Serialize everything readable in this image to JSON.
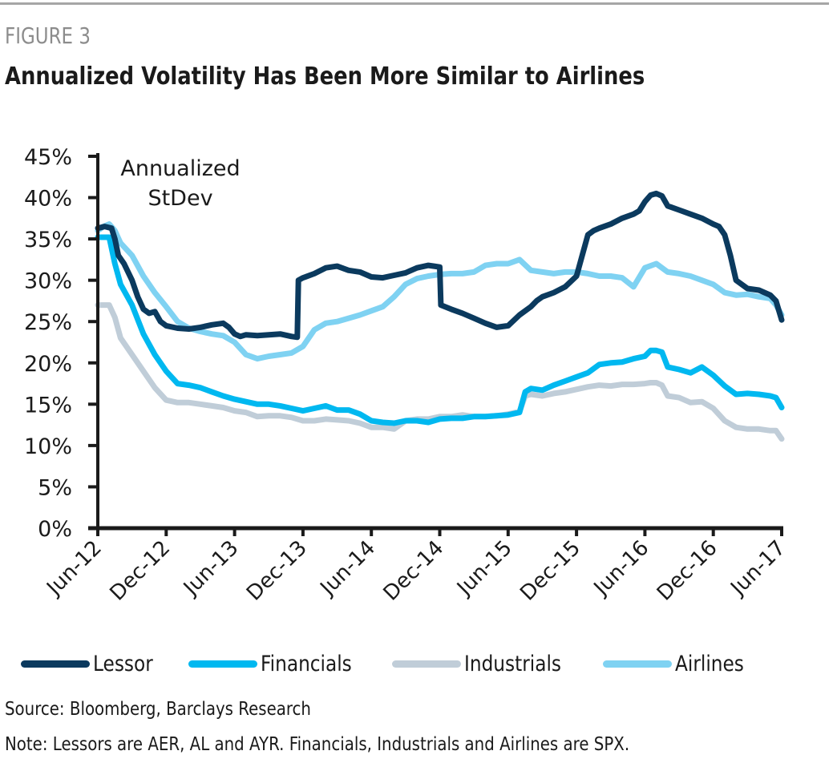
{
  "figure_label": "FIGURE 3",
  "title": "Annualized Volatility Has Been More Similar to Airlines",
  "source": "Source: Bloomberg, Barclays Research",
  "note": "Note: Lessors are AER, AL and AYR. Financials, Industrials and Airlines are SPX.",
  "chart_data": {
    "type": "line",
    "title": "Annualized Volatility Has Been More Similar to Airlines",
    "annotation": [
      "Annualized",
      "StDev"
    ],
    "xlabel": "",
    "ylabel": "Annualized StDev",
    "x_unit": "months since Jun-12",
    "xlim": [
      0,
      60
    ],
    "ylim": [
      0,
      45
    ],
    "y_ticks": [
      0,
      5,
      10,
      15,
      20,
      25,
      30,
      35,
      40,
      45
    ],
    "y_tick_labels": [
      "0%",
      "5%",
      "10%",
      "15%",
      "20%",
      "25%",
      "30%",
      "35%",
      "40%",
      "45%"
    ],
    "x_ticks": [
      0,
      6,
      12,
      18,
      24,
      30,
      36,
      42,
      48,
      54,
      60
    ],
    "x_tick_labels": [
      "Jun-12",
      "Dec-12",
      "Jun-13",
      "Dec-13",
      "Jun-14",
      "Dec-14",
      "Jun-15",
      "Dec-15",
      "Jun-16",
      "Dec-16",
      "Jun-17"
    ],
    "grid": false,
    "legend_position": "bottom",
    "series": [
      {
        "name": "Lessor",
        "color": "#0b3a5e",
        "x": [
          0,
          0.6,
          1.2,
          1.5,
          1.8,
          2.3,
          3,
          3.5,
          4,
          4.5,
          5,
          5.5,
          6,
          7,
          8,
          9,
          10,
          11,
          11.5,
          12,
          12.5,
          13,
          14,
          15,
          16,
          17,
          17.5,
          17.6,
          18,
          19,
          20,
          21,
          22,
          23,
          24,
          25,
          26,
          27,
          28,
          29,
          29.5,
          30,
          30.1,
          31,
          32,
          33,
          34,
          35,
          36,
          37,
          38,
          38.5,
          39,
          40,
          41,
          42,
          42.5,
          43,
          43.5,
          44,
          45,
          46,
          47,
          47.5,
          48,
          48.5,
          49,
          49.5,
          50,
          51,
          52,
          53,
          54,
          54.5,
          55,
          55.5,
          56,
          57,
          58,
          59,
          59.5,
          60
        ],
        "values": [
          36.3,
          36.5,
          36.3,
          35.0,
          33.0,
          32.0,
          30.0,
          28.0,
          26.5,
          26.0,
          26.2,
          25.0,
          24.5,
          24.2,
          24.1,
          24.3,
          24.6,
          24.8,
          24.3,
          23.5,
          23.2,
          23.4,
          23.3,
          23.4,
          23.5,
          23.2,
          23.1,
          30.0,
          30.3,
          30.8,
          31.5,
          31.7,
          31.2,
          31.0,
          30.4,
          30.3,
          30.6,
          30.9,
          31.5,
          31.8,
          31.7,
          31.6,
          27.0,
          26.5,
          26.0,
          25.4,
          24.8,
          24.3,
          24.5,
          25.8,
          26.8,
          27.5,
          28.0,
          28.5,
          29.2,
          30.5,
          33.0,
          35.5,
          36.0,
          36.3,
          36.8,
          37.5,
          38.0,
          38.4,
          39.5,
          40.3,
          40.5,
          40.2,
          39.0,
          38.5,
          38.0,
          37.5,
          36.8,
          36.5,
          35.5,
          33.0,
          30.0,
          29.0,
          28.8,
          28.2,
          27.5,
          25.2
        ]
      },
      {
        "name": "Financials",
        "color": "#00b8f0",
        "x": [
          0,
          1,
          1.5,
          2,
          3,
          4,
          5,
          6,
          7,
          8,
          9,
          10,
          11,
          12,
          13,
          14,
          15,
          16,
          17,
          18,
          19,
          20,
          21,
          22,
          23,
          24,
          25,
          26,
          27,
          28,
          29,
          30,
          31,
          32,
          33,
          34,
          35,
          36,
          37,
          37.5,
          38,
          39,
          40,
          41,
          42,
          43,
          44,
          45,
          46,
          47,
          48,
          48.5,
          49,
          49.5,
          50,
          51,
          52,
          53,
          54,
          55,
          56,
          57,
          58,
          59,
          59.5,
          60
        ],
        "values": [
          35.2,
          35.2,
          32.0,
          29.5,
          27.0,
          23.5,
          21.0,
          19.0,
          17.5,
          17.3,
          17.0,
          16.5,
          16.0,
          15.6,
          15.3,
          15.0,
          15.0,
          14.8,
          14.5,
          14.2,
          14.5,
          14.8,
          14.3,
          14.3,
          13.8,
          13.0,
          12.8,
          12.7,
          13.0,
          13.0,
          12.8,
          13.2,
          13.3,
          13.3,
          13.5,
          13.5,
          13.6,
          13.7,
          14.0,
          16.5,
          16.9,
          16.7,
          17.3,
          17.8,
          18.3,
          18.8,
          19.8,
          20.0,
          20.1,
          20.5,
          20.8,
          21.5,
          21.5,
          21.3,
          19.5,
          19.2,
          18.8,
          19.5,
          18.5,
          17.2,
          16.2,
          16.3,
          16.2,
          16.0,
          15.8,
          14.6
        ]
      },
      {
        "name": "Industrials",
        "color": "#c0cdd8",
        "x": [
          0,
          1,
          1.5,
          2,
          3,
          4,
          5,
          6,
          7,
          8,
          9,
          10,
          11,
          12,
          13,
          14,
          15,
          16,
          17,
          18,
          19,
          20,
          21,
          22,
          23,
          24,
          25,
          26,
          27,
          28,
          29,
          30,
          31,
          32,
          33,
          34,
          35,
          36,
          37,
          37.5,
          38,
          39,
          40,
          41,
          42,
          43,
          44,
          45,
          46,
          47,
          48,
          48.5,
          49,
          49.5,
          50,
          51,
          52,
          53,
          54,
          55,
          56,
          57,
          58,
          59,
          59.5,
          60
        ],
        "values": [
          27.0,
          27.0,
          25.5,
          23.0,
          21.0,
          19.0,
          17.0,
          15.5,
          15.2,
          15.2,
          15.0,
          14.8,
          14.6,
          14.2,
          14.0,
          13.5,
          13.6,
          13.6,
          13.4,
          13.0,
          13.0,
          13.2,
          13.1,
          13.0,
          12.7,
          12.2,
          12.2,
          12.0,
          13.0,
          13.2,
          13.2,
          13.5,
          13.5,
          13.7,
          13.5,
          13.5,
          13.6,
          13.8,
          14.1,
          16.0,
          16.2,
          16.0,
          16.3,
          16.5,
          16.8,
          17.1,
          17.3,
          17.2,
          17.4,
          17.4,
          17.5,
          17.6,
          17.6,
          17.3,
          16.0,
          15.8,
          15.2,
          15.3,
          14.5,
          13.0,
          12.2,
          12.0,
          12.0,
          11.8,
          11.8,
          10.8
        ]
      },
      {
        "name": "Airlines",
        "color": "#7fd2f2",
        "x": [
          0,
          0.5,
          1,
          1.5,
          2,
          3,
          4,
          5,
          6,
          7,
          8,
          9,
          10,
          11,
          12,
          13,
          14,
          15,
          16,
          17,
          18,
          19,
          20,
          21,
          22,
          23,
          24,
          25,
          26,
          27,
          28,
          29,
          30,
          31,
          32,
          33,
          34,
          35,
          36,
          37,
          38,
          39,
          40,
          41,
          42,
          43,
          44,
          45,
          46,
          47,
          48,
          49,
          50,
          51,
          52,
          53,
          54,
          55,
          56,
          57,
          58,
          59,
          59.5,
          60
        ],
        "values": [
          36.0,
          36.5,
          36.8,
          36.0,
          34.5,
          33.0,
          30.5,
          28.5,
          26.8,
          25.0,
          24.2,
          23.8,
          23.5,
          23.3,
          22.5,
          21.0,
          20.5,
          20.8,
          21.0,
          21.2,
          22.0,
          24.0,
          24.8,
          25.0,
          25.4,
          25.8,
          26.3,
          26.8,
          28.0,
          29.5,
          30.2,
          30.5,
          30.7,
          30.8,
          30.8,
          31.0,
          31.8,
          32.0,
          32.0,
          32.5,
          31.2,
          31.0,
          30.8,
          31.0,
          31.0,
          30.8,
          30.5,
          30.5,
          30.3,
          29.2,
          31.5,
          32.0,
          31.0,
          30.8,
          30.5,
          30.0,
          29.5,
          28.5,
          28.2,
          28.3,
          28.0,
          27.8,
          27.0,
          25.8
        ]
      }
    ]
  },
  "legend": [
    {
      "label": "Lessor",
      "color": "#0b3a5e"
    },
    {
      "label": "Financials",
      "color": "#00b8f0"
    },
    {
      "label": "Industrials",
      "color": "#c0cdd8"
    },
    {
      "label": "Airlines",
      "color": "#7fd2f2"
    }
  ]
}
